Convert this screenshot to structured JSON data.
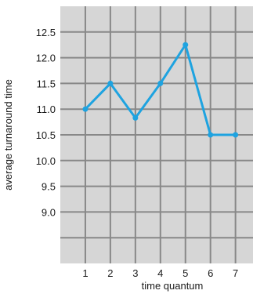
{
  "chart_data": {
    "type": "line",
    "x": [
      1,
      2,
      3,
      4,
      5,
      6,
      7
    ],
    "values": [
      11.0,
      11.5,
      10.83,
      11.5,
      12.25,
      10.5,
      10.5
    ],
    "xlabel": "time quantum",
    "ylabel": "average turnaround time",
    "x_ticks": [
      "1",
      "2",
      "3",
      "4",
      "5",
      "6",
      "7"
    ],
    "y_ticks": [
      "12.5",
      "12.0",
      "11.5",
      "11.0",
      "10.5",
      "10.0",
      "9.5",
      "9.0"
    ],
    "xlim": [
      0,
      7.7
    ],
    "ylim": [
      8,
      13
    ],
    "grid": true,
    "colors": {
      "plot_background": "#d6d6d6",
      "grid": "#888888",
      "line": "#1ea3e0"
    }
  }
}
